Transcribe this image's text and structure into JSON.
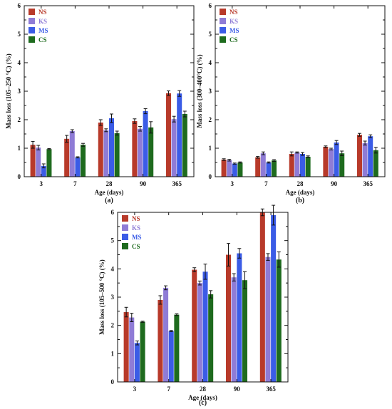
{
  "colors": {
    "NS": "#b83a2a",
    "KS": "#8f7cd6",
    "MS": "#3b5ce6",
    "CS": "#1e6b1e"
  },
  "chart_data": [
    {
      "type": "bar",
      "caption": "(a)",
      "xlabel": "Age (days)",
      "ylabel": "Mass loss (105–250 °C) (%)",
      "ylim": [
        0,
        6
      ],
      "yticks": [
        "0",
        "1",
        "2",
        "3",
        "4",
        "5",
        "6"
      ],
      "categories": [
        "3",
        "7",
        "28",
        "90",
        "365"
      ],
      "legend_position": "top-left",
      "series": [
        {
          "name": "NS",
          "values": [
            1.12,
            1.33,
            1.9,
            1.95,
            2.93
          ],
          "errors": [
            0.12,
            0.12,
            0.1,
            0.08,
            0.08
          ]
        },
        {
          "name": "KS",
          "values": [
            1.02,
            1.6,
            1.63,
            1.68,
            2.02
          ],
          "errors": [
            0.08,
            0.05,
            0.05,
            0.08,
            0.1
          ]
        },
        {
          "name": "MS",
          "values": [
            0.38,
            0.68,
            2.05,
            2.3,
            2.92
          ],
          "errors": [
            0.07,
            0.02,
            0.15,
            0.09,
            0.1
          ]
        },
        {
          "name": "CS",
          "values": [
            0.97,
            1.12,
            1.53,
            1.73,
            2.2
          ],
          "errors": [
            0.02,
            0.05,
            0.07,
            0.2,
            0.1
          ]
        }
      ]
    },
    {
      "type": "bar",
      "caption": "(b)",
      "xlabel": "Age (days)",
      "ylabel": "Mass loss (300–400°C) (%)",
      "ylim": [
        0,
        6
      ],
      "yticks": [
        "0",
        "1",
        "2",
        "3",
        "4",
        "5",
        "6"
      ],
      "categories": [
        "3",
        "7",
        "28",
        "90",
        "365"
      ],
      "legend_position": "top-left",
      "series": [
        {
          "name": "NS",
          "values": [
            0.6,
            0.68,
            0.8,
            1.05,
            1.47
          ],
          "errors": [
            0.03,
            0.03,
            0.07,
            0.03,
            0.05
          ]
        },
        {
          "name": "KS",
          "values": [
            0.58,
            0.82,
            0.85,
            0.97,
            1.18
          ],
          "errors": [
            0.03,
            0.05,
            0.02,
            0.03,
            0.07
          ]
        },
        {
          "name": "MS",
          "values": [
            0.46,
            0.5,
            0.8,
            1.2,
            1.42
          ],
          "errors": [
            0.02,
            0.02,
            0.05,
            0.07,
            0.05
          ]
        },
        {
          "name": "CS",
          "values": [
            0.5,
            0.57,
            0.7,
            0.82,
            0.93
          ],
          "errors": [
            0.02,
            0.03,
            0.03,
            0.08,
            0.1
          ]
        }
      ]
    },
    {
      "type": "bar",
      "caption": "(c)",
      "xlabel": "Age (days)",
      "ylabel": "Mass loss (105–500 °C) (%)",
      "ylim": [
        0,
        6
      ],
      "yticks": [
        "0",
        "1",
        "2",
        "3",
        "4",
        "5",
        "6"
      ],
      "categories": [
        "3",
        "7",
        "28",
        "90",
        "365"
      ],
      "legend_position": "top-left",
      "series": [
        {
          "name": "NS",
          "values": [
            2.47,
            2.9,
            3.97,
            4.5,
            6.0
          ],
          "errors": [
            0.17,
            0.15,
            0.07,
            0.4,
            0.12
          ]
        },
        {
          "name": "KS",
          "values": [
            2.28,
            3.33,
            3.5,
            3.7,
            4.42
          ],
          "errors": [
            0.15,
            0.07,
            0.07,
            0.13,
            0.12
          ]
        },
        {
          "name": "MS",
          "values": [
            1.38,
            1.8,
            3.9,
            4.55,
            5.9
          ],
          "errors": [
            0.07,
            0.02,
            0.27,
            0.17,
            0.35
          ]
        },
        {
          "name": "CS",
          "values": [
            2.13,
            2.38,
            3.1,
            3.6,
            4.33
          ],
          "errors": [
            0.02,
            0.03,
            0.13,
            0.3,
            0.27
          ]
        }
      ]
    }
  ]
}
